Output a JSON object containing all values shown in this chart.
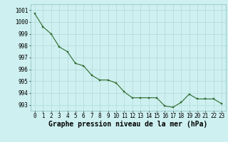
{
  "x": [
    0,
    1,
    2,
    3,
    4,
    5,
    6,
    7,
    8,
    9,
    10,
    11,
    12,
    13,
    14,
    15,
    16,
    17,
    18,
    19,
    20,
    21,
    22,
    23
  ],
  "y": [
    1000.7,
    999.6,
    999.0,
    997.9,
    997.5,
    996.5,
    996.3,
    995.5,
    995.1,
    995.1,
    994.85,
    994.1,
    993.6,
    993.6,
    993.6,
    993.6,
    992.9,
    992.8,
    993.2,
    993.9,
    993.5,
    993.5,
    993.5,
    993.1
  ],
  "ylim": [
    992.5,
    1001.5
  ],
  "yticks": [
    993,
    994,
    995,
    996,
    997,
    998,
    999,
    1000,
    1001
  ],
  "xticks": [
    0,
    1,
    2,
    3,
    4,
    5,
    6,
    7,
    8,
    9,
    10,
    11,
    12,
    13,
    14,
    15,
    16,
    17,
    18,
    19,
    20,
    21,
    22,
    23
  ],
  "line_color": "#2d6a2d",
  "marker_color": "#2d6a2d",
  "bg_color": "#cef0f0",
  "grid_color": "#b0d8d8",
  "xlabel": "Graphe pression niveau de la mer (hPa)",
  "xlabel_fontsize": 7,
  "tick_fontsize": 5.5,
  "title": ""
}
